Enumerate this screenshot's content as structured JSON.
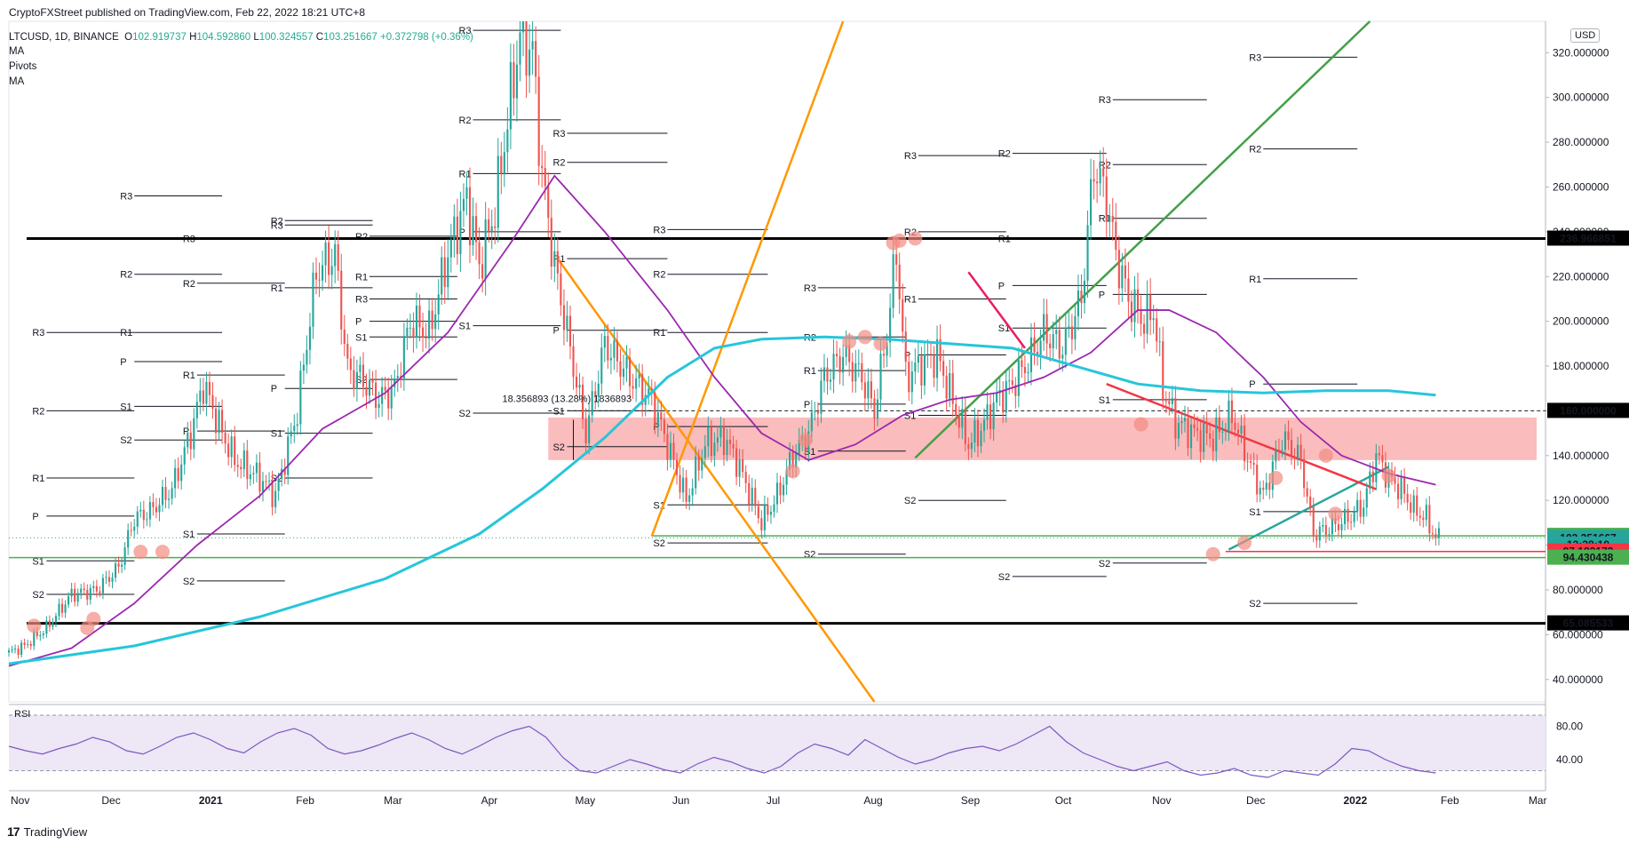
{
  "header": {
    "published": "CryptoFXStreet published on TradingView.com, Feb 22, 2022 18:21 UTC+8",
    "symbol": "LTCUSD, 1D, BINANCE",
    "open_label": "O",
    "open": "102.919737",
    "high_label": "H",
    "high": "104.592860",
    "low_label": "L",
    "low": "100.324557",
    "close_label": "C",
    "close": "103.251667",
    "change": "+0.372798 (+0.36%)",
    "indicators": [
      "MA",
      "Pivots",
      "MA"
    ]
  },
  "currency": "USD",
  "footer": {
    "brand": "TradingView",
    "logo_glyph": "17"
  },
  "measure_label": "18.356893 (13.28%) 1836893",
  "price_tags": [
    {
      "value": 236.966851,
      "label": "236.966851",
      "bg": "#000000",
      "fg": "#ffffff"
    },
    {
      "value": 160.0,
      "label": "160.000000",
      "bg": "#000000",
      "fg": "#ffffff"
    },
    {
      "value": 104.177191,
      "label": "104.177191",
      "bg": "#4caf50",
      "fg": "#ffffff"
    },
    {
      "value": 103.251667,
      "label": "103.251667",
      "bg": "#26a69a",
      "fg": "#ffffff"
    },
    {
      "value": 100.2,
      "label": "13:38:19",
      "bg": "#26a69a",
      "fg": "#ffffff"
    },
    {
      "value": 97.182172,
      "label": "97.182172",
      "bg": "#f23645",
      "fg": "#ffffff"
    },
    {
      "value": 94.430438,
      "label": "94.430438",
      "bg": "#4caf50",
      "fg": "#ffffff"
    },
    {
      "value": 65.085533,
      "label": "65.085533",
      "bg": "#000000",
      "fg": "#ffffff"
    }
  ],
  "chart_data": {
    "type": "candlestick",
    "x_ticks": [
      "Nov",
      "Dec",
      "2021",
      "Feb",
      "Mar",
      "Apr",
      "May",
      "Jun",
      "Jul",
      "Aug",
      "Sep",
      "Oct",
      "Nov",
      "Dec",
      "2022",
      "Feb",
      "Mar"
    ],
    "y_ticks": [
      40,
      60,
      80,
      100,
      120,
      140,
      160,
      180,
      200,
      220,
      240,
      260,
      280,
      300,
      320
    ],
    "y_tick_labels": [
      "40.000000",
      "60.000000",
      "80.000000",
      "100.000000",
      "120.000000",
      "140.000000",
      "160.000000",
      "180.000000",
      "200.000000",
      "220.000000",
      "240.000000",
      "260.000000",
      "280.000000",
      "300.000000",
      "320.000000"
    ],
    "ylim": [
      30,
      334
    ],
    "close_path": [
      [
        0,
        52
      ],
      [
        5,
        55
      ],
      [
        12,
        63
      ],
      [
        20,
        78
      ],
      [
        28,
        80
      ],
      [
        35,
        90
      ],
      [
        40,
        112
      ],
      [
        45,
        115
      ],
      [
        52,
        125
      ],
      [
        58,
        150
      ],
      [
        62,
        172
      ],
      [
        68,
        150
      ],
      [
        72,
        138
      ],
      [
        80,
        130
      ],
      [
        85,
        122
      ],
      [
        92,
        160
      ],
      [
        98,
        222
      ],
      [
        104,
        230
      ],
      [
        108,
        178
      ],
      [
        112,
        175
      ],
      [
        118,
        165
      ],
      [
        123,
        170
      ],
      [
        128,
        200
      ],
      [
        134,
        195
      ],
      [
        140,
        230
      ],
      [
        146,
        255
      ],
      [
        150,
        225
      ],
      [
        155,
        250
      ],
      [
        160,
        300
      ],
      [
        163,
        328
      ],
      [
        167,
        320
      ],
      [
        170,
        265
      ],
      [
        174,
        225
      ],
      [
        180,
        180
      ],
      [
        184,
        150
      ],
      [
        190,
        190
      ],
      [
        198,
        175
      ],
      [
        205,
        165
      ],
      [
        210,
        145
      ],
      [
        216,
        120
      ],
      [
        222,
        145
      ],
      [
        228,
        148
      ],
      [
        232,
        138
      ],
      [
        240,
        110
      ],
      [
        245,
        122
      ],
      [
        250,
        140
      ],
      [
        255,
        150
      ],
      [
        260,
        175
      ],
      [
        266,
        185
      ],
      [
        272,
        175
      ],
      [
        276,
        160
      ],
      [
        280,
        195
      ],
      [
        283,
        232
      ],
      [
        286,
        175
      ],
      [
        290,
        180
      ],
      [
        296,
        185
      ],
      [
        302,
        160
      ],
      [
        306,
        145
      ],
      [
        310,
        152
      ],
      [
        315,
        165
      ],
      [
        320,
        172
      ],
      [
        325,
        182
      ],
      [
        330,
        195
      ],
      [
        336,
        188
      ],
      [
        342,
        210
      ],
      [
        346,
        270
      ],
      [
        350,
        255
      ],
      [
        353,
        230
      ],
      [
        357,
        210
      ],
      [
        362,
        200
      ],
      [
        365,
        205
      ],
      [
        368,
        170
      ],
      [
        372,
        155
      ],
      [
        378,
        150
      ],
      [
        384,
        148
      ],
      [
        390,
        158
      ],
      [
        396,
        135
      ],
      [
        400,
        122
      ],
      [
        406,
        148
      ],
      [
        412,
        138
      ],
      [
        416,
        105
      ],
      [
        422,
        108
      ],
      [
        428,
        113
      ],
      [
        432,
        118
      ],
      [
        436,
        140
      ],
      [
        440,
        130
      ],
      [
        444,
        125
      ],
      [
        448,
        116
      ],
      [
        452,
        112
      ],
      [
        455,
        103
      ]
    ],
    "candle_window": [
      0,
      456
    ],
    "series": [
      {
        "name": "MA",
        "color": "#9c27b0",
        "points": [
          [
            0,
            46
          ],
          [
            20,
            54
          ],
          [
            40,
            74
          ],
          [
            60,
            100
          ],
          [
            80,
            122
          ],
          [
            100,
            152
          ],
          [
            120,
            168
          ],
          [
            140,
            195
          ],
          [
            160,
            235
          ],
          [
            174,
            265
          ],
          [
            190,
            240
          ],
          [
            210,
            205
          ],
          [
            225,
            175
          ],
          [
            240,
            150
          ],
          [
            255,
            138
          ],
          [
            270,
            145
          ],
          [
            285,
            158
          ],
          [
            300,
            165
          ],
          [
            315,
            168
          ],
          [
            330,
            175
          ],
          [
            345,
            186
          ],
          [
            360,
            205
          ],
          [
            370,
            205
          ],
          [
            385,
            195
          ],
          [
            400,
            175
          ],
          [
            412,
            155
          ],
          [
            425,
            140
          ],
          [
            440,
            132
          ],
          [
            455,
            127
          ]
        ]
      },
      {
        "name": "MA",
        "color": "#26c6da",
        "points": [
          [
            0,
            47
          ],
          [
            40,
            55
          ],
          [
            80,
            68
          ],
          [
            120,
            85
          ],
          [
            150,
            105
          ],
          [
            170,
            125
          ],
          [
            190,
            148
          ],
          [
            210,
            175
          ],
          [
            225,
            188
          ],
          [
            240,
            192
          ],
          [
            260,
            193
          ],
          [
            280,
            192
          ],
          [
            300,
            190
          ],
          [
            320,
            188
          ],
          [
            340,
            180
          ],
          [
            360,
            172
          ],
          [
            380,
            169
          ],
          [
            400,
            168
          ],
          [
            420,
            169
          ],
          [
            440,
            169
          ],
          [
            455,
            167
          ]
        ]
      }
    ],
    "horizontal_levels": [
      236.966851,
      160.0,
      104.177191,
      97.182172,
      94.430438,
      65.085533
    ],
    "zone": [
      138,
      157
    ],
    "rsi": {
      "label": "RSI",
      "ticks": [
        "80.00",
        "40.00"
      ],
      "range": [
        30,
        90
      ],
      "band": [
        30,
        70
      ],
      "values": [
        62,
        58,
        55,
        60,
        64,
        70,
        66,
        58,
        55,
        62,
        70,
        74,
        68,
        60,
        56,
        66,
        74,
        78,
        72,
        60,
        55,
        58,
        63,
        69,
        74,
        68,
        60,
        55,
        62,
        70,
        76,
        80,
        70,
        52,
        40,
        38,
        44,
        50,
        46,
        41,
        38,
        46,
        52,
        48,
        42,
        38,
        44,
        56,
        64,
        60,
        54,
        68,
        60,
        52,
        46,
        50,
        56,
        60,
        62,
        58,
        64,
        72,
        80,
        66,
        56,
        50,
        44,
        40,
        44,
        48,
        40,
        36,
        38,
        42,
        36,
        34,
        40,
        38,
        36,
        46,
        60,
        58,
        50,
        44,
        40,
        38
      ]
    }
  }
}
